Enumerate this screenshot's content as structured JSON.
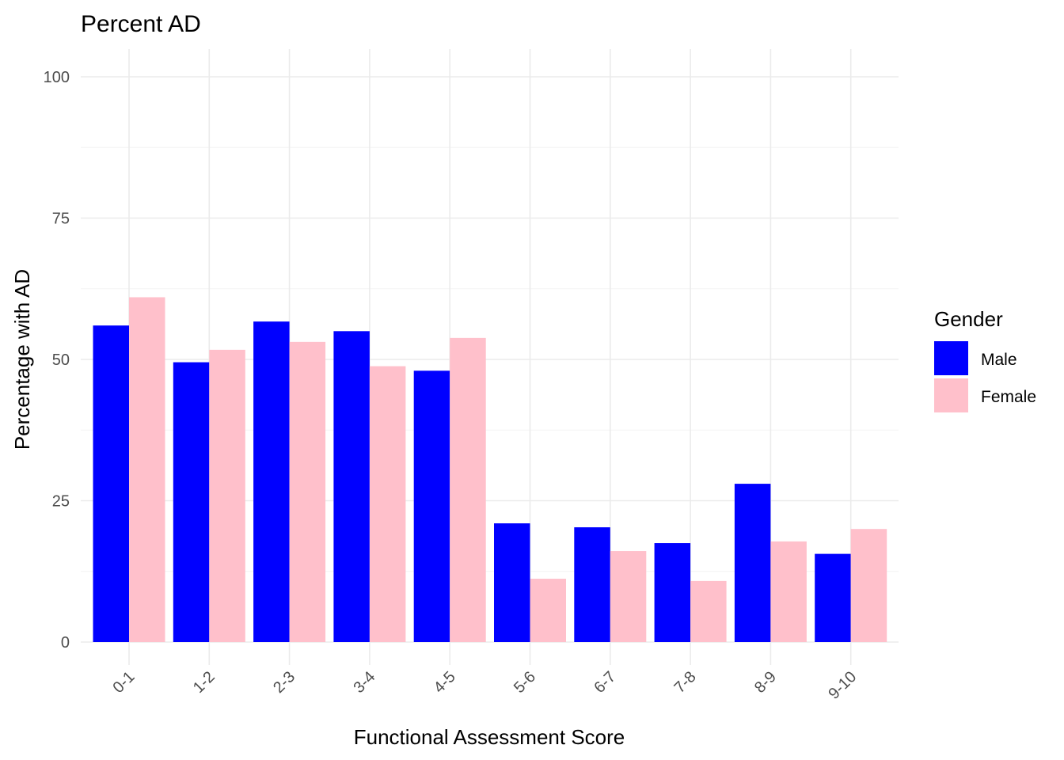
{
  "chart_data": {
    "type": "bar",
    "title": "Percent AD",
    "xlabel": "Functional Assessment Score",
    "ylabel": "Percentage with AD",
    "categories": [
      "0-1",
      "1-2",
      "2-3",
      "3-4",
      "4-5",
      "5-6",
      "6-7",
      "7-8",
      "8-9",
      "9-10"
    ],
    "series": [
      {
        "name": "Male",
        "color": "#0000ff",
        "values": [
          56.0,
          49.5,
          56.7,
          55.0,
          48.0,
          21.0,
          20.3,
          17.5,
          28.0,
          15.6
        ]
      },
      {
        "name": "Female",
        "color": "#ffc0cb",
        "values": [
          61.0,
          51.7,
          53.1,
          48.8,
          53.8,
          11.2,
          16.1,
          10.8,
          17.8,
          20.0
        ]
      }
    ],
    "ylim": [
      0,
      100
    ],
    "yticks": [
      0,
      25,
      50,
      75,
      100
    ],
    "grid": true,
    "legend": {
      "title": "Gender",
      "position": "right"
    }
  }
}
